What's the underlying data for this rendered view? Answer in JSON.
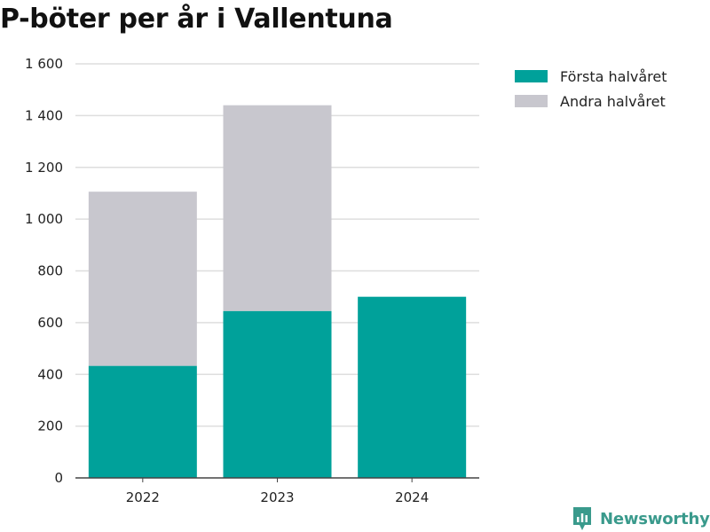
{
  "chart_data": {
    "type": "bar",
    "stacked": true,
    "title": "P-böter per år i Vallentuna",
    "categories": [
      "2022",
      "2023",
      "2024"
    ],
    "series": [
      {
        "name": "Första halvåret",
        "color": "#00a19a",
        "values": [
          433,
          645,
          700
        ]
      },
      {
        "name": "Andra halvåret",
        "color": "#c8c7ce",
        "values": [
          673,
          795,
          0
        ]
      }
    ],
    "xlabel": "",
    "ylabel": "",
    "ylim": [
      0,
      1600
    ],
    "yticks": [
      0,
      200,
      400,
      600,
      800,
      1000,
      1200,
      1400,
      1600
    ],
    "ytick_labels": [
      "0",
      "200",
      "400",
      "600",
      "800",
      "1 000",
      "1 200",
      "1 400",
      "1 600"
    ],
    "grid": true,
    "legend_position": "top-right"
  },
  "branding": {
    "name": "Newsworthy",
    "color": "#3a9a8c",
    "icon": "newsworthy-logo-icon"
  }
}
